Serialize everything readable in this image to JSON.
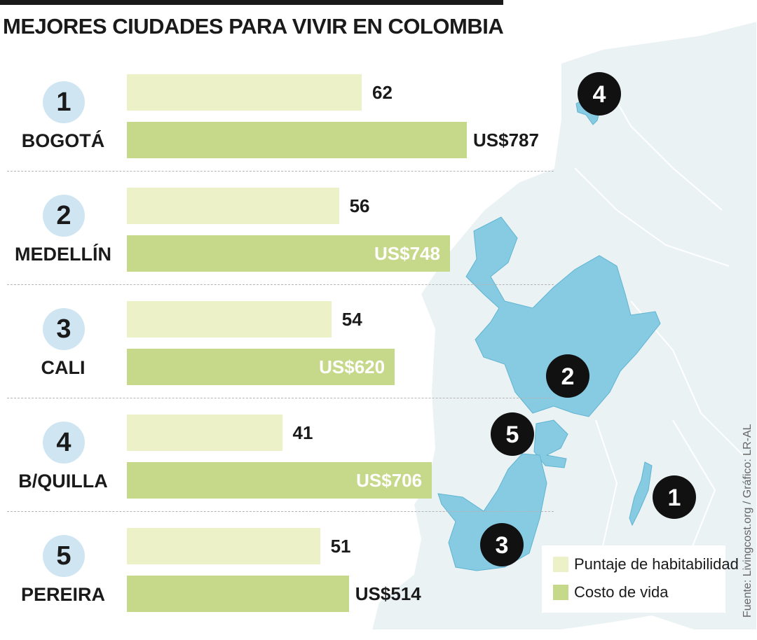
{
  "title": "MEJORES CIUDADES PARA VIVIR EN COLOMBIA",
  "source": "Fuente: Livingcost.org / Gráfico: LR-AL",
  "colors": {
    "score_bar": "#ecf1c7",
    "cost_bar": "#c6d98a",
    "rank_circle": "#cfe6f2",
    "map_land": "#eaf2f4",
    "map_highlight": "#87cbe3",
    "map_marker": "#111111"
  },
  "chart_data": {
    "type": "bar",
    "categories": [
      "BOGOTÁ",
      "MEDELLÍN",
      "CALI",
      "B/QUILLA",
      "PEREIRA"
    ],
    "ranks": [
      "1",
      "2",
      "3",
      "4",
      "5"
    ],
    "series": [
      {
        "name": "Puntaje de habitabilidad",
        "values": [
          62,
          56,
          54,
          41,
          51
        ],
        "labels": [
          "62",
          "56",
          "54",
          "41",
          "51"
        ]
      },
      {
        "name": "Costo de vida",
        "values": [
          787,
          748,
          620,
          706,
          514
        ],
        "labels": [
          "US$787",
          "US$748",
          "US$620",
          "US$706",
          "US$514"
        ]
      }
    ],
    "legend": {
      "position": "bottom-right"
    },
    "grid": false
  },
  "map": {
    "markers": [
      "4",
      "2",
      "5",
      "1",
      "3"
    ]
  }
}
